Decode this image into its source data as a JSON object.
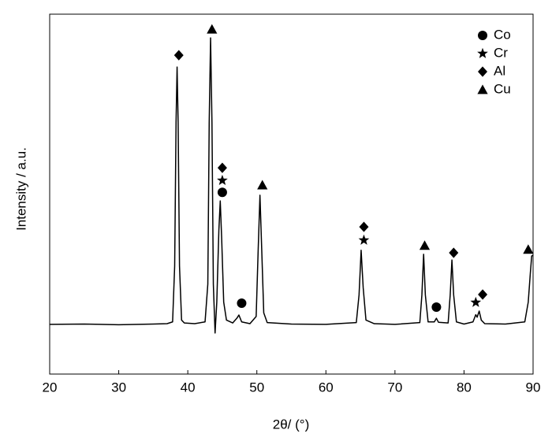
{
  "chart_data": {
    "type": "line",
    "xlabel": "2θ/ (°)",
    "ylabel": "Intensity / a.u.",
    "xlim": [
      20,
      90
    ],
    "xticks": [
      20,
      30,
      40,
      50,
      60,
      70,
      80,
      90
    ],
    "ylim": [
      0,
      100
    ],
    "color": "#000000",
    "legend": "upper right",
    "x": [
      20,
      25,
      30,
      35,
      37,
      37.8,
      38.1,
      38.3,
      38.45,
      38.6,
      38.8,
      39.1,
      39.5,
      41,
      42.5,
      42.9,
      43.1,
      43.3,
      43.5,
      43.7,
      43.95,
      44.2,
      44.5,
      44.7,
      44.9,
      45.2,
      45.6,
      46.5,
      47.1,
      47.4,
      47.8,
      49,
      49.9,
      50.2,
      50.45,
      50.7,
      51,
      51.5,
      55,
      60,
      64.4,
      64.8,
      65.1,
      65.4,
      65.8,
      67,
      70,
      73.6,
      73.9,
      74.15,
      74.4,
      74.8,
      75.7,
      76,
      76.3,
      77.7,
      78,
      78.25,
      78.5,
      78.9,
      80,
      81.3,
      81.7,
      81.9,
      82.2,
      82.5,
      83,
      86,
      88.8,
      89.3,
      89.6,
      89.8,
      90
    ],
    "values": [
      13.8,
      13.9,
      13.7,
      13.9,
      14.0,
      14.5,
      30,
      70,
      85.3,
      70,
      30,
      15,
      14.2,
      14.0,
      14.5,
      25,
      70,
      93.4,
      70,
      25,
      11.4,
      20,
      40,
      48.1,
      38,
      20,
      15,
      14.2,
      15.5,
      16.4,
      14.5,
      14.0,
      16,
      35,
      49.7,
      35,
      17,
      14.3,
      13.9,
      13.8,
      14.3,
      22,
      34.4,
      24,
      15,
      14,
      13.8,
      14.3,
      22,
      33.3,
      22,
      14.5,
      14.5,
      15.5,
      14.4,
      14.2,
      22,
      31.7,
      22,
      14.5,
      13.9,
      14.5,
      16.5,
      15.8,
      17.5,
      15,
      14,
      13.9,
      14.5,
      20,
      28,
      32.8,
      33
    ],
    "markers": [
      {
        "name": "Co",
        "shape": "circle",
        "x": [
          45.0,
          47.8,
          76.0
        ],
        "y": [
          50.5,
          19.7,
          18.6
        ]
      },
      {
        "name": "Cr",
        "shape": "star",
        "x": [
          45.0,
          65.5,
          81.7
        ],
        "y": [
          53.8,
          37.2,
          19.9
        ]
      },
      {
        "name": "Al",
        "shape": "diamond",
        "x": [
          38.7,
          45.0,
          65.5,
          78.5,
          82.7
        ],
        "y": [
          88.6,
          57.3,
          40.9,
          33.7,
          22.1
        ]
      },
      {
        "name": "Cu",
        "shape": "triangle",
        "x": [
          43.5,
          50.8,
          74.3,
          89.3
        ],
        "y": [
          95.8,
          52.5,
          35.7,
          34.6
        ]
      }
    ]
  }
}
